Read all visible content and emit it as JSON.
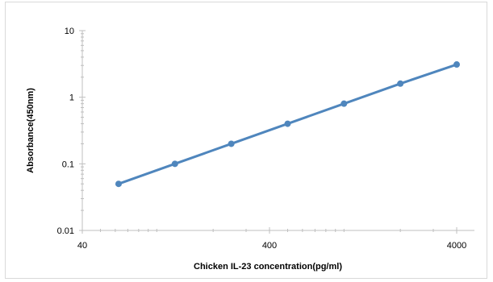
{
  "chart_data": {
    "type": "line",
    "title": "",
    "xlabel": "Chicken  IL-23  concentration(pg/ml)",
    "ylabel": "Absorbance(450nm)",
    "x_scale": "log",
    "y_scale": "log",
    "xlim": [
      40,
      4000
    ],
    "ylim": [
      0.01,
      10
    ],
    "x_ticks": [
      40,
      400,
      4000
    ],
    "x_tick_labels": [
      "40",
      "400",
      "4000"
    ],
    "y_ticks": [
      0.01,
      0.1,
      1,
      10
    ],
    "y_tick_labels": [
      "0.01",
      "0.1",
      "1",
      "10"
    ],
    "grid": false,
    "legend": "none",
    "series": [
      {
        "color": "#4f86bd",
        "x": [
          62.5,
          125,
          250,
          500,
          1000,
          2000,
          4000
        ],
        "y": [
          0.05,
          0.1,
          0.2,
          0.4,
          0.8,
          1.6,
          3.1
        ]
      }
    ]
  }
}
